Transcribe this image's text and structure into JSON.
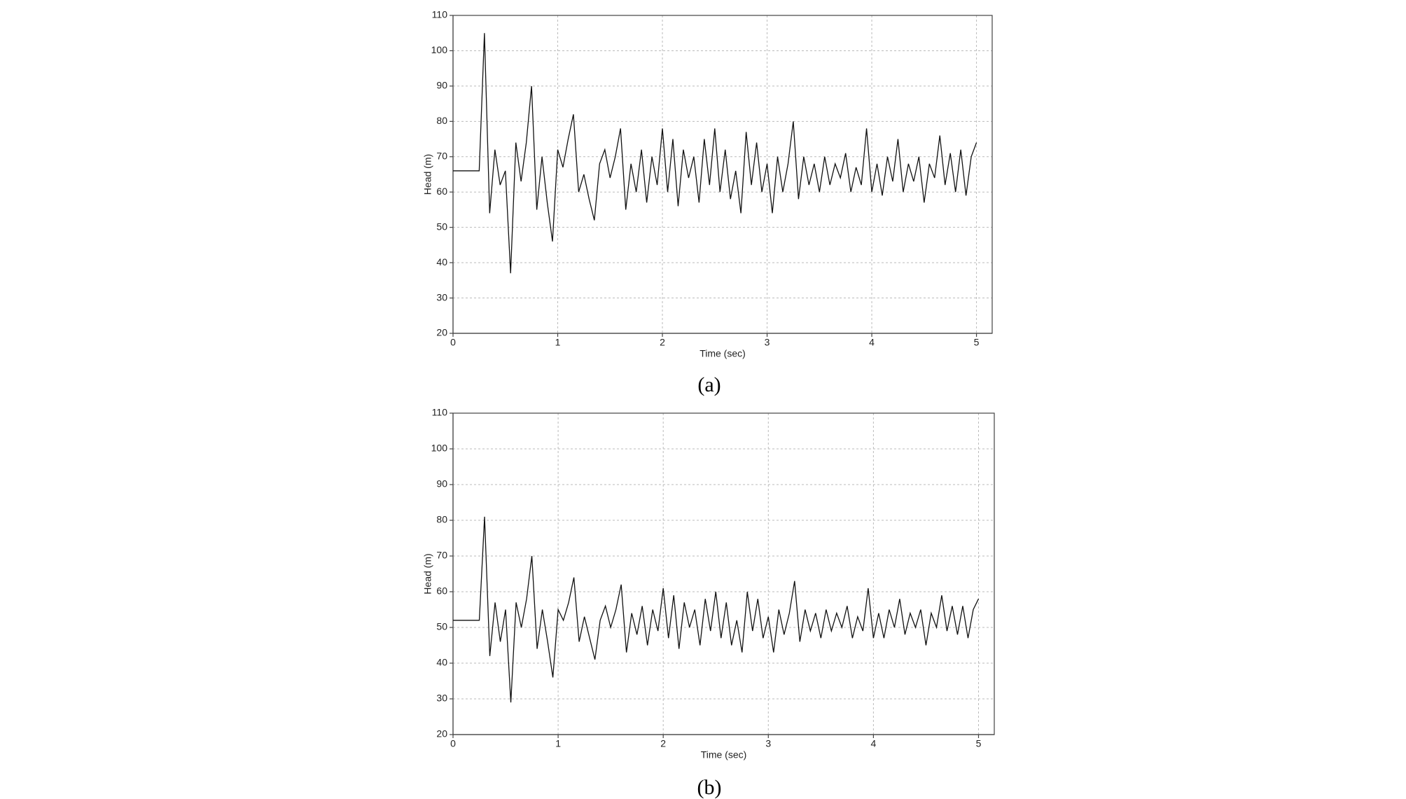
{
  "chart_data": [
    {
      "type": "line",
      "caption": "(a)",
      "xlabel": "Time (sec)",
      "ylabel": "Head (m)",
      "xlim": [
        0,
        5.15
      ],
      "xticks": [
        0,
        1,
        2,
        3,
        4,
        5
      ],
      "ylim": [
        20,
        110
      ],
      "yticks": [
        20,
        30,
        40,
        50,
        60,
        70,
        80,
        90,
        100,
        110
      ],
      "grid": true,
      "x": [
        0,
        0.05,
        0.1,
        0.15,
        0.2,
        0.25,
        0.3,
        0.35,
        0.4,
        0.45,
        0.5,
        0.55,
        0.6,
        0.65,
        0.7,
        0.75,
        0.8,
        0.85,
        0.9,
        0.95,
        1,
        1.05,
        1.1,
        1.15,
        1.2,
        1.25,
        1.3,
        1.35,
        1.4,
        1.45,
        1.5,
        1.55,
        1.6,
        1.65,
        1.7,
        1.75,
        1.8,
        1.85,
        1.9,
        1.95,
        2,
        2.05,
        2.1,
        2.15,
        2.2,
        2.25,
        2.3,
        2.35,
        2.4,
        2.45,
        2.5,
        2.55,
        2.6,
        2.65,
        2.7,
        2.75,
        2.8,
        2.85,
        2.9,
        2.95,
        3,
        3.05,
        3.1,
        3.15,
        3.2,
        3.25,
        3.3,
        3.35,
        3.4,
        3.45,
        3.5,
        3.55,
        3.6,
        3.65,
        3.7,
        3.75,
        3.8,
        3.85,
        3.9,
        3.95,
        4,
        4.05,
        4.1,
        4.15,
        4.2,
        4.25,
        4.3,
        4.35,
        4.4,
        4.45,
        4.5,
        4.55,
        4.6,
        4.65,
        4.7,
        4.75,
        4.8,
        4.85,
        4.9,
        4.95,
        5
      ],
      "series": [
        {
          "color": "#111111",
          "values": [
            66,
            66,
            66,
            66,
            66,
            66,
            105,
            54,
            72,
            62,
            66,
            37,
            74,
            63,
            74,
            90,
            55,
            70,
            57,
            46,
            72,
            67,
            75,
            82,
            60,
            65,
            58,
            52,
            68,
            72,
            64,
            70,
            78,
            55,
            68,
            60,
            72,
            57,
            70,
            62,
            78,
            60,
            75,
            56,
            72,
            64,
            70,
            57,
            75,
            62,
            78,
            60,
            72,
            58,
            66,
            54,
            77,
            62,
            74,
            60,
            68,
            54,
            70,
            60,
            68,
            80,
            58,
            70,
            62,
            68,
            60,
            70,
            62,
            68,
            64,
            71,
            60,
            67,
            62,
            78,
            60,
            68,
            59,
            70,
            63,
            75,
            60,
            68,
            63,
            70,
            57,
            68,
            64,
            76,
            62,
            71,
            60,
            72,
            59,
            70,
            74
          ]
        }
      ]
    },
    {
      "type": "line",
      "caption": "(b)",
      "xlabel": "Time (sec)",
      "ylabel": "Head (m)",
      "xlim": [
        0,
        5.15
      ],
      "xticks": [
        0,
        1,
        2,
        3,
        4,
        5
      ],
      "ylim": [
        20,
        110
      ],
      "yticks": [
        20,
        30,
        40,
        50,
        60,
        70,
        80,
        90,
        100,
        110
      ],
      "grid": true,
      "x": [
        0,
        0.05,
        0.1,
        0.15,
        0.2,
        0.25,
        0.3,
        0.35,
        0.4,
        0.45,
        0.5,
        0.55,
        0.6,
        0.65,
        0.7,
        0.75,
        0.8,
        0.85,
        0.9,
        0.95,
        1,
        1.05,
        1.1,
        1.15,
        1.2,
        1.25,
        1.3,
        1.35,
        1.4,
        1.45,
        1.5,
        1.55,
        1.6,
        1.65,
        1.7,
        1.75,
        1.8,
        1.85,
        1.9,
        1.95,
        2,
        2.05,
        2.1,
        2.15,
        2.2,
        2.25,
        2.3,
        2.35,
        2.4,
        2.45,
        2.5,
        2.55,
        2.6,
        2.65,
        2.7,
        2.75,
        2.8,
        2.85,
        2.9,
        2.95,
        3,
        3.05,
        3.1,
        3.15,
        3.2,
        3.25,
        3.3,
        3.35,
        3.4,
        3.45,
        3.5,
        3.55,
        3.6,
        3.65,
        3.7,
        3.75,
        3.8,
        3.85,
        3.9,
        3.95,
        4,
        4.05,
        4.1,
        4.15,
        4.2,
        4.25,
        4.3,
        4.35,
        4.4,
        4.45,
        4.5,
        4.55,
        4.6,
        4.65,
        4.7,
        4.75,
        4.8,
        4.85,
        4.9,
        4.95,
        5
      ],
      "series": [
        {
          "color": "#111111",
          "values": [
            52,
            52,
            52,
            52,
            52,
            52,
            81,
            42,
            57,
            46,
            55,
            29,
            57,
            50,
            58,
            70,
            44,
            55,
            46,
            36,
            55,
            52,
            57,
            64,
            46,
            53,
            47,
            41,
            52,
            56,
            50,
            55,
            62,
            43,
            54,
            48,
            56,
            45,
            55,
            49,
            61,
            47,
            59,
            44,
            57,
            50,
            55,
            45,
            58,
            49,
            60,
            47,
            57,
            45,
            52,
            43,
            60,
            49,
            58,
            47,
            53,
            43,
            55,
            48,
            54,
            63,
            46,
            55,
            49,
            54,
            47,
            55,
            49,
            54,
            50,
            56,
            47,
            53,
            49,
            61,
            47,
            54,
            47,
            55,
            50,
            58,
            48,
            54,
            50,
            55,
            45,
            54,
            50,
            59,
            49,
            56,
            48,
            56,
            47,
            55,
            58
          ]
        }
      ]
    }
  ]
}
